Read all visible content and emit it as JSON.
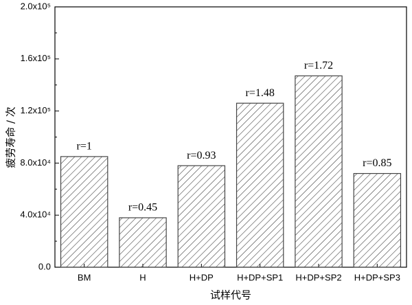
{
  "chart_data": {
    "type": "bar",
    "xlabel": "试样代号",
    "ylabel": "疲劳寿命 / 次",
    "categories": [
      "BM",
      "H",
      "H+DP",
      "H+DP+SP1",
      "H+DP+SP2",
      "H+DP+SP3"
    ],
    "values": [
      85000,
      38000,
      78000,
      126000,
      147000,
      72000
    ],
    "annotations": [
      "r=1",
      "r=0.45",
      "r=0.93",
      "r=1.48",
      "r=1.72",
      "r=0.85"
    ],
    "color": "#444444",
    "ylim": [
      0,
      200000
    ],
    "yticks": [
      {
        "value": 0,
        "label": "0.0"
      },
      {
        "value": 40000,
        "label": "4.0x10⁴"
      },
      {
        "value": 80000,
        "label": "8.0x10⁴"
      },
      {
        "value": 120000,
        "label": "1.2x10⁵"
      },
      {
        "value": 160000,
        "label": "1.6x10⁵"
      },
      {
        "value": 200000,
        "label": "2.0x10⁵"
      }
    ]
  }
}
